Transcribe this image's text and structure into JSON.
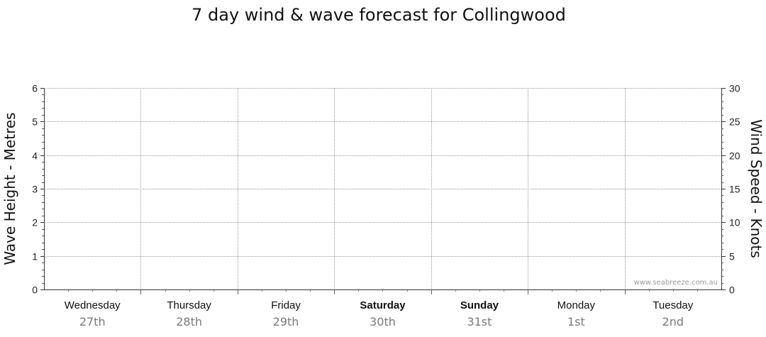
{
  "chart_data": {
    "type": "line",
    "title": "7 day wind & wave forecast for Collingwood",
    "left_axis": {
      "label": "Wave Height - Metres",
      "ylim": [
        0,
        6
      ],
      "ticks": [
        "0",
        "1",
        "2",
        "3",
        "4",
        "5",
        "6"
      ]
    },
    "right_axis": {
      "label": "Wind Speed - Knots",
      "ylim": [
        0,
        30
      ],
      "ticks": [
        "0",
        "5",
        "10",
        "15",
        "20",
        "25",
        "30"
      ]
    },
    "days": [
      {
        "day": "Wednesday",
        "date": "27th",
        "weekend": false
      },
      {
        "day": "Thursday",
        "date": "28th",
        "weekend": false
      },
      {
        "day": "Friday",
        "date": "29th",
        "weekend": false
      },
      {
        "day": "Saturday",
        "date": "30th",
        "weekend": true
      },
      {
        "day": "Sunday",
        "date": "31st",
        "weekend": true
      },
      {
        "day": "Monday",
        "date": "1st",
        "weekend": false
      },
      {
        "day": "Tuesday",
        "date": "2nd",
        "weekend": false
      }
    ],
    "series": [],
    "grid": true,
    "credit": "www.seabreeze.com.au"
  }
}
